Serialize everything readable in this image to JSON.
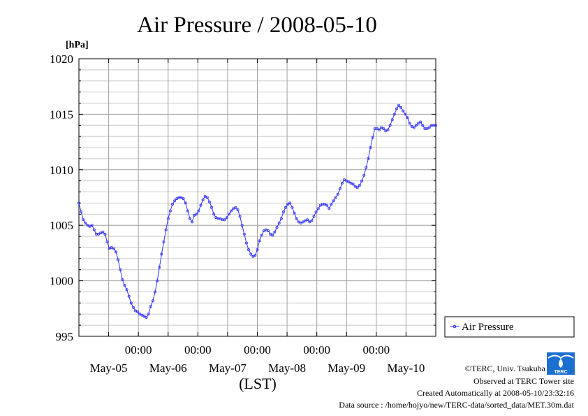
{
  "colors": {
    "series": "#3333ff",
    "grid_major": "#a0a0a0",
    "grid_minor": "#c8c8c8",
    "axis": "#000000",
    "logo": "#1a6fd0"
  },
  "chart_data": {
    "type": "line",
    "title": "Air Pressure / 2008-05-10",
    "ylabel": "[hPa]",
    "xlabel": "(LST)",
    "ylim": [
      995,
      1020
    ],
    "yticks": [
      995,
      1000,
      1005,
      1010,
      1015,
      1020
    ],
    "ytick_labels": [
      "995",
      "1000",
      "1005",
      "1010",
      "1015",
      "1020"
    ],
    "xlim_days": [
      0,
      6
    ],
    "xticks_time": [
      "00:00",
      "00:00",
      "00:00",
      "00:00",
      "00:00"
    ],
    "xticks_date": [
      "May-05",
      "May-06",
      "May-07",
      "May-08",
      "May-09",
      "May-10"
    ],
    "grid": true,
    "legend_position": "right",
    "series": [
      {
        "name": "Air Pressure",
        "x_start": "2008-05-04 12:00",
        "x_end": "2008-05-10 24:00",
        "values": [
          1007.0,
          1006.2,
          1005.5,
          1005.2,
          1005.0,
          1004.9,
          1005.0,
          1004.6,
          1004.2,
          1004.2,
          1004.3,
          1004.4,
          1004.2,
          1003.5,
          1002.9,
          1003.0,
          1002.9,
          1002.6,
          1001.9,
          1001.0,
          1000.1,
          999.6,
          999.2,
          998.6,
          998.0,
          997.6,
          997.3,
          997.2,
          997.0,
          996.9,
          996.8,
          996.7,
          997.0,
          997.7,
          998.2,
          999.0,
          1000.0,
          1001.2,
          1002.4,
          1003.5,
          1004.6,
          1005.6,
          1006.3,
          1006.9,
          1007.2,
          1007.4,
          1007.5,
          1007.5,
          1007.4,
          1007.0,
          1006.3,
          1005.6,
          1005.3,
          1005.9,
          1006.0,
          1006.3,
          1006.8,
          1007.3,
          1007.6,
          1007.5,
          1007.1,
          1006.6,
          1006.0,
          1005.7,
          1005.6,
          1005.6,
          1005.5,
          1005.5,
          1005.7,
          1006.0,
          1006.3,
          1006.5,
          1006.6,
          1006.4,
          1005.8,
          1005.0,
          1004.2,
          1003.4,
          1002.8,
          1002.4,
          1002.2,
          1002.3,
          1002.8,
          1003.6,
          1004.1,
          1004.5,
          1004.6,
          1004.5,
          1004.2,
          1004.1,
          1004.4,
          1004.8,
          1005.2,
          1005.6,
          1006.2,
          1006.6,
          1006.9,
          1007.0,
          1006.6,
          1006.1,
          1005.6,
          1005.3,
          1005.2,
          1005.3,
          1005.4,
          1005.5,
          1005.3,
          1005.4,
          1005.8,
          1006.2,
          1006.5,
          1006.8,
          1006.9,
          1006.9,
          1006.8,
          1006.5,
          1006.9,
          1007.2,
          1007.5,
          1007.8,
          1008.3,
          1008.8,
          1009.1,
          1009.0,
          1008.9,
          1008.8,
          1008.7,
          1008.5,
          1008.4,
          1008.6,
          1009.0,
          1009.5,
          1010.2,
          1011.0,
          1012.0,
          1012.9,
          1013.7,
          1013.7,
          1013.6,
          1013.8,
          1013.7,
          1013.5,
          1013.6,
          1014.0,
          1014.5,
          1015.0,
          1015.5,
          1015.8,
          1015.6,
          1015.3,
          1015.0,
          1014.7,
          1014.2,
          1013.9,
          1013.8,
          1014.0,
          1014.2,
          1014.3,
          1014.0,
          1013.7,
          1013.7,
          1013.8,
          1014.0,
          1014.0,
          1014.0
        ]
      }
    ]
  },
  "legend": {
    "label": "Air Pressure"
  },
  "footer": {
    "copyright": "©TERC, Univ. Tsukuba",
    "observed": "Observed at TERC Tower site",
    "created": "Created Automatically at 2008-05-10/23:32:16",
    "source": "Data source : /home/hojyo/new/TERC-data/sorted_data/MET.30m.dat"
  },
  "logo": {
    "text": "TERC"
  }
}
